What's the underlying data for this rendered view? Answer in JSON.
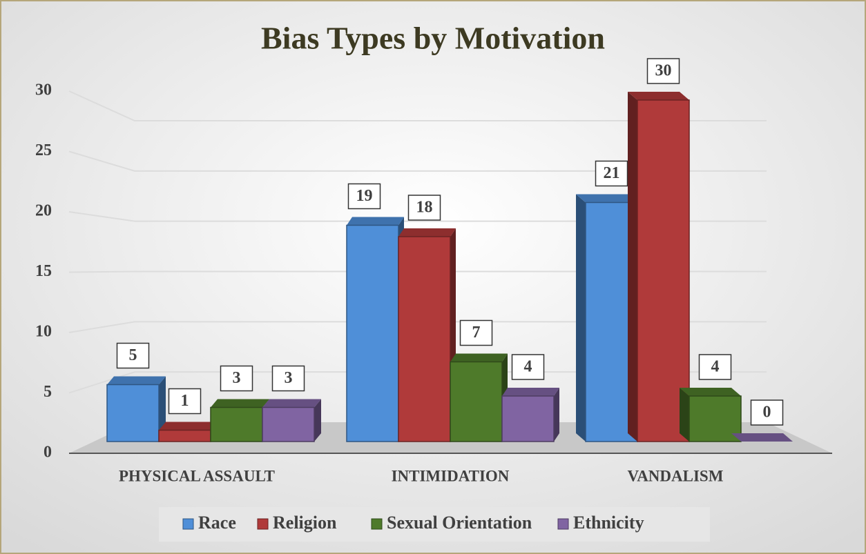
{
  "chart_data": {
    "type": "bar",
    "title": "Bias Types by Motivation",
    "categories": [
      "PHYSICAL ASSAULT",
      "INTIMIDATION",
      "VANDALISM"
    ],
    "series": [
      {
        "name": "Race",
        "color": "#4f8fd8",
        "values": [
          5,
          19,
          21
        ]
      },
      {
        "name": "Religion",
        "color": "#b03a3a",
        "values": [
          1,
          18,
          30
        ]
      },
      {
        "name": "Sexual Orientation",
        "color": "#4e7a2a",
        "values": [
          3,
          7,
          4
        ]
      },
      {
        "name": "Ethnicity",
        "color": "#8064a2",
        "values": [
          3,
          4,
          0
        ]
      }
    ],
    "ylim": [
      0,
      30
    ],
    "yticks": [
      0,
      5,
      10,
      15,
      20,
      25,
      30
    ],
    "grid": true,
    "legend": "bottom"
  }
}
